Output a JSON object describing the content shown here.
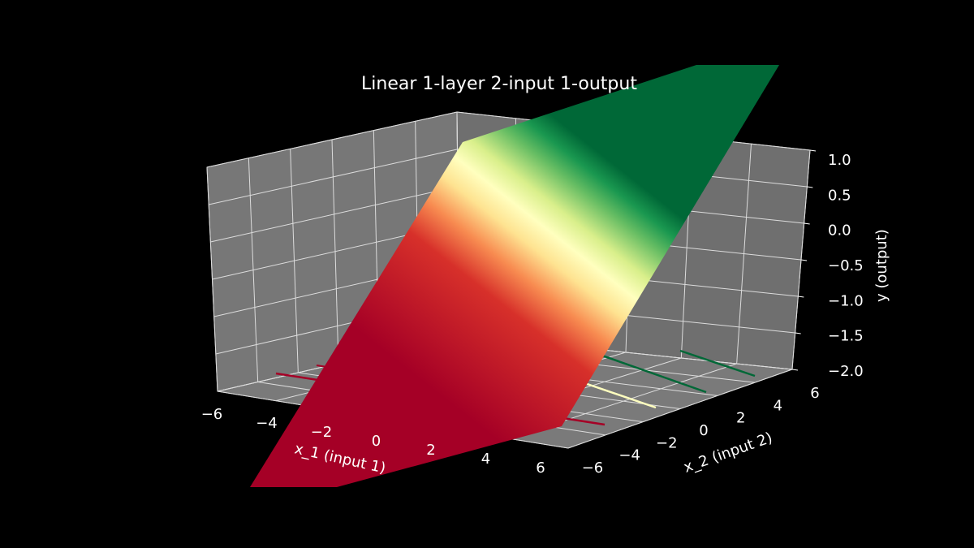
{
  "chart_data": {
    "type": "surface3d",
    "title": "Linear 1-layer 2-input 1-output",
    "xlabel": "x_1 (input 1)",
    "ylabel": "x_2 (input 2)",
    "zlabel": "y (output)",
    "xlim": [
      -6,
      6
    ],
    "ylim": [
      -6,
      6
    ],
    "zlim": [
      -2.0,
      1.0
    ],
    "xticks": [
      "−6",
      "−4",
      "−2",
      "0",
      "2",
      "4",
      "6"
    ],
    "yticks": [
      "−6",
      "−4",
      "−2",
      "0",
      "2",
      "4",
      "6"
    ],
    "zticks": [
      "−2.0",
      "−1.5",
      "−1.0",
      "−0.5",
      "0.0",
      "0.5",
      "1.0"
    ],
    "colormap": "RdYlGn",
    "contour_levels": [
      -1,
      0,
      1
    ],
    "grid": true,
    "pane_color": "#777777",
    "background": "#000000",
    "text_color": "#ffffff"
  }
}
